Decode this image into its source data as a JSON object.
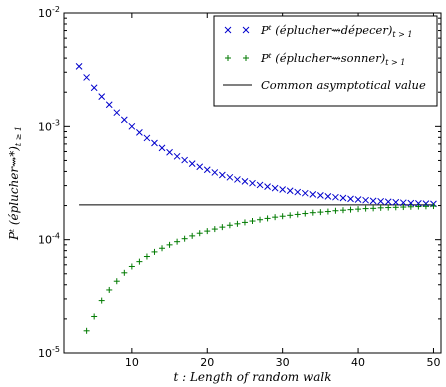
{
  "chart_data": {
    "type": "scatter",
    "xlabel": "t : Length of random walk",
    "ylabel": "Pᵗ (éplucher⇝*)",
    "ylabel_sub": "t ≥ 1",
    "xlim": [
      1,
      51
    ],
    "xticks": [
      10,
      20,
      30,
      40,
      50
    ],
    "yscale": "log",
    "ylim": [
      1e-05,
      0.01
    ],
    "ytick_labels": [
      {
        "value": 0.01,
        "base": "10",
        "exp": "-2"
      },
      {
        "value": 0.001,
        "base": "10",
        "exp": "-3"
      },
      {
        "value": 0.0001,
        "base": "10",
        "exp": "-4"
      },
      {
        "value": 1e-05,
        "base": "10",
        "exp": "-5"
      }
    ],
    "grid": false,
    "legend_position": "top-right",
    "series": [
      {
        "name": "Pᵗ (éplucher⇝dépecer)",
        "name_sub": "t > 1",
        "marker": "x",
        "color": "#0000cc",
        "x": [
          3,
          4,
          5,
          6,
          7,
          8,
          9,
          10,
          11,
          12,
          13,
          14,
          15,
          16,
          17,
          18,
          19,
          20,
          21,
          22,
          23,
          24,
          25,
          26,
          27,
          28,
          29,
          30,
          31,
          32,
          33,
          34,
          35,
          36,
          37,
          38,
          39,
          40,
          41,
          42,
          43,
          44,
          45,
          46,
          47,
          48,
          49,
          50
        ],
        "y": [
          0.00338,
          0.0027,
          0.00219,
          0.00183,
          0.00155,
          0.00132,
          0.00114,
          0.001,
          0.000885,
          0.00079,
          0.000713,
          0.000646,
          0.000591,
          0.000544,
          0.000504,
          0.000469,
          0.00044,
          0.000414,
          0.000392,
          0.000372,
          0.000355,
          0.00034,
          0.000327,
          0.000315,
          0.000304,
          0.000294,
          0.000285,
          0.000277,
          0.00027,
          0.000263,
          0.000257,
          0.000251,
          0.000246,
          0.000241,
          0.000237,
          0.000233,
          0.000229,
          0.000226,
          0.000223,
          0.00022,
          0.000218,
          0.000216,
          0.000214,
          0.000212,
          0.00021,
          0.000209,
          0.000208,
          0.000207
        ]
      },
      {
        "name": "Pᵗ (éplucher⇝sonner)",
        "name_sub": "t > 1",
        "marker": "+",
        "color": "#007a00",
        "x": [
          4,
          5,
          6,
          7,
          8,
          9,
          10,
          11,
          12,
          13,
          14,
          15,
          16,
          17,
          18,
          19,
          20,
          21,
          22,
          23,
          24,
          25,
          26,
          27,
          28,
          29,
          30,
          31,
          32,
          33,
          34,
          35,
          36,
          37,
          38,
          39,
          40,
          41,
          42,
          43,
          44,
          45,
          46,
          47,
          48,
          49,
          50
        ],
        "y": [
          1.57e-05,
          2.1e-05,
          2.9e-05,
          3.6e-05,
          4.3e-05,
          5.1e-05,
          5.8e-05,
          6.4e-05,
          7.1e-05,
          7.8e-05,
          8.4e-05,
          9e-05,
          9.6e-05,
          0.000102,
          0.000108,
          0.000114,
          0.000119,
          0.000124,
          0.000129,
          0.000134,
          0.000138,
          0.000142,
          0.000146,
          0.00015,
          0.000154,
          0.000158,
          0.000161,
          0.000164,
          0.000167,
          0.00017,
          0.000173,
          0.000175,
          0.000177,
          0.00018,
          0.000182,
          0.000184,
          0.000186,
          0.000188,
          0.000189,
          0.000191,
          0.000192,
          0.000193,
          0.000194,
          0.000195,
          0.000196,
          0.000197,
          0.000198
        ]
      },
      {
        "name": "Common asymptotical value",
        "marker": "line",
        "color": "#000000",
        "x": [
          3,
          50
        ],
        "y": [
          0.000203,
          0.000203
        ]
      }
    ]
  }
}
